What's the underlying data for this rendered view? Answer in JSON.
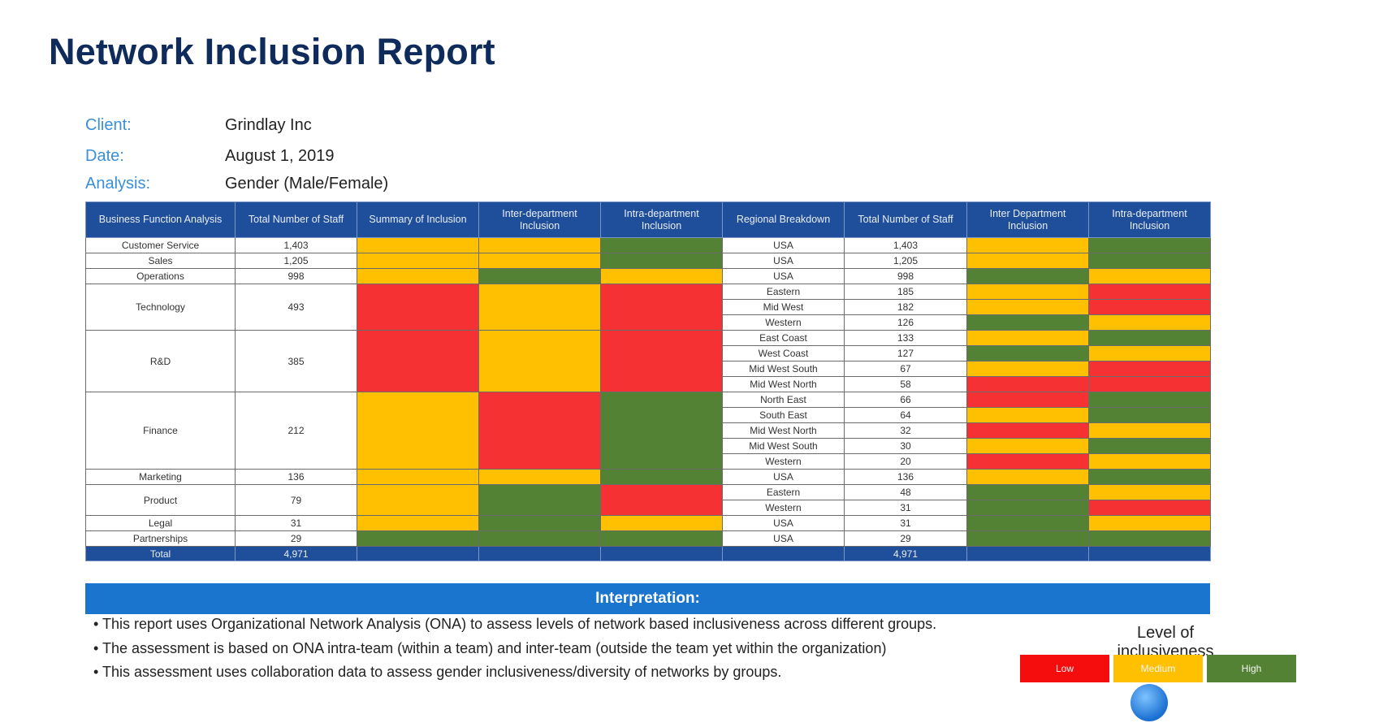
{
  "title": "Network Inclusion Report",
  "meta": [
    {
      "key": "Client:",
      "value": "Grindlay Inc"
    },
    {
      "key": "Date:",
      "value": "August 1, 2019"
    },
    {
      "key": "Analysis:",
      "value": "Gender (Male/Female)"
    }
  ],
  "headers": [
    "Business Function Analysis",
    "Total Number of Staff",
    "Summary of Inclusion",
    "Inter-department Inclusion",
    "Intra-department Inclusion",
    "Regional Breakdown",
    "Total Number of Staff",
    "Inter Department Inclusion",
    "Intra-department Inclusion"
  ],
  "functions": [
    {
      "name": "Customer Service",
      "staff": "1,403",
      "summary": "medium",
      "inter": "medium",
      "intra": "high",
      "rows": 1
    },
    {
      "name": "Sales",
      "staff": "1,205",
      "summary": "medium",
      "inter": "medium",
      "intra": "high",
      "rows": 1
    },
    {
      "name": "Operations",
      "staff": "998",
      "summary": "medium",
      "inter": "high",
      "intra": "medium",
      "rows": 1
    },
    {
      "name": "Technology",
      "staff": "493",
      "summary": "low",
      "inter": "medium",
      "intra": "low",
      "rows": 3
    },
    {
      "name": "R&D",
      "staff": "385",
      "summary": "low",
      "inter": "medium",
      "intra": "low",
      "rows": 4
    },
    {
      "name": "Finance",
      "staff": "212",
      "summary": "medium",
      "inter": "low",
      "intra": "high",
      "rows": 5
    },
    {
      "name": "Marketing",
      "staff": "136",
      "summary": "medium",
      "inter": "medium",
      "intra": "high",
      "rows": 1
    },
    {
      "name": "Product",
      "staff": "79",
      "summary": "medium",
      "inter": "high",
      "intra": "low",
      "rows": 2
    },
    {
      "name": "Legal",
      "staff": "31",
      "summary": "medium",
      "inter": "high",
      "intra": "medium",
      "rows": 1
    },
    {
      "name": "Partnerships",
      "staff": "29",
      "summary": "high",
      "inter": "high",
      "intra": "high",
      "rows": 1
    }
  ],
  "regions": [
    {
      "region": "USA",
      "staff": "1,403",
      "inter": "medium",
      "intra": "high"
    },
    {
      "region": "USA",
      "staff": "1,205",
      "inter": "medium",
      "intra": "high"
    },
    {
      "region": "USA",
      "staff": "998",
      "inter": "high",
      "intra": "medium"
    },
    {
      "region": "Eastern",
      "staff": "185",
      "inter": "medium",
      "intra": "low"
    },
    {
      "region": "Mid West",
      "staff": "182",
      "inter": "medium",
      "intra": "low"
    },
    {
      "region": "Western",
      "staff": "126",
      "inter": "high",
      "intra": "medium"
    },
    {
      "region": "East Coast",
      "staff": "133",
      "inter": "medium",
      "intra": "high"
    },
    {
      "region": "West Coast",
      "staff": "127",
      "inter": "high",
      "intra": "medium"
    },
    {
      "region": "Mid West South",
      "staff": "67",
      "inter": "medium",
      "intra": "low"
    },
    {
      "region": "Mid West North",
      "staff": "58",
      "inter": "low",
      "intra": "low"
    },
    {
      "region": "North East",
      "staff": "66",
      "inter": "low",
      "intra": "high"
    },
    {
      "region": "South East",
      "staff": "64",
      "inter": "medium",
      "intra": "high"
    },
    {
      "region": "Mid West North",
      "staff": "32",
      "inter": "low",
      "intra": "medium"
    },
    {
      "region": "Mid West South",
      "staff": "30",
      "inter": "medium",
      "intra": "high"
    },
    {
      "region": "Western",
      "staff": "20",
      "inter": "low",
      "intra": "medium"
    },
    {
      "region": "USA",
      "staff": "136",
      "inter": "medium",
      "intra": "high"
    },
    {
      "region": "Eastern",
      "staff": "48",
      "inter": "high",
      "intra": "medium"
    },
    {
      "region": "Western",
      "staff": "31",
      "inter": "high",
      "intra": "low"
    },
    {
      "region": "USA",
      "staff": "31",
      "inter": "high",
      "intra": "medium"
    },
    {
      "region": "USA",
      "staff": "29",
      "inter": "high",
      "intra": "high"
    }
  ],
  "total": {
    "label": "Total",
    "staff": "4,971",
    "regional_staff": "4,971"
  },
  "interpretation": {
    "heading": "Interpretation:",
    "bullets": [
      "This report uses Organizational Network Analysis (ONA) to assess levels of network based inclusiveness across different groups.",
      "The assessment is based on ONA intra-team (within a team) and inter-team (outside the team yet within the organization)",
      "This assessment uses collaboration data to assess gender inclusiveness/diversity of networks by groups."
    ]
  },
  "legend": {
    "title": "Level of inclusiveness",
    "items": [
      {
        "label": "Low",
        "color": "#f50d0d"
      },
      {
        "label": "Medium",
        "color": "#fec000"
      },
      {
        "label": "High",
        "color": "#538234"
      }
    ]
  },
  "colors": {
    "low": "#f63133",
    "medium": "#fec000",
    "high": "#538234",
    "header": "#1f4e9a",
    "interpretation_bar": "#1a75cf"
  }
}
